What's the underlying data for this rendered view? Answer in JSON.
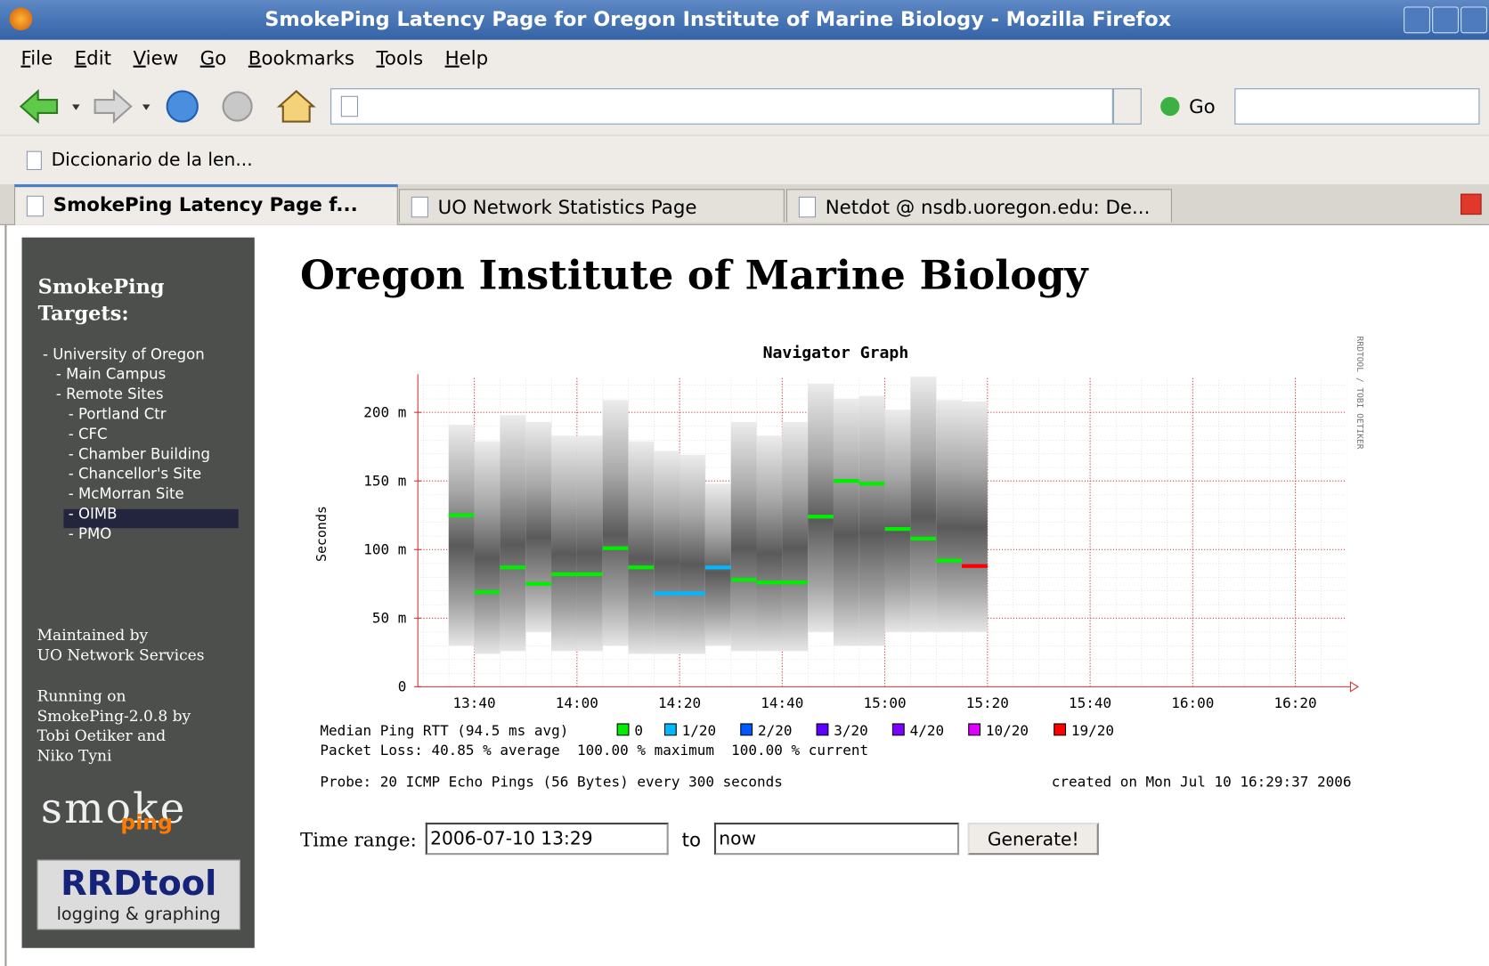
{
  "window": {
    "title": "SmokePing Latency Page for Oregon Institute of Marine Biology - Mozilla Firefox"
  },
  "menu": [
    "File",
    "Edit",
    "View",
    "Go",
    "Bookmarks",
    "Tools",
    "Help"
  ],
  "toolbar": {
    "go": "Go"
  },
  "bookmarks": [
    "Diccionario de la len..."
  ],
  "tabs": [
    "SmokePing Latency Page f...",
    "UO Network Statistics Page",
    "Netdot @ nsdb.uoregon.edu: De..."
  ],
  "sidebar": {
    "heading": "SmokePing Targets:",
    "targets": [
      "- University of Oregon",
      "- Main Campus",
      "- Remote Sites",
      "- Portland Ctr",
      "- CFC",
      "- Chamber Building",
      "- Chancellor's Site",
      "- McMorran Site",
      "- OIMB",
      "- PMO"
    ],
    "maintained": [
      "Maintained by",
      "UO Network Services"
    ],
    "running": [
      "Running on",
      "SmokePing-2.0.8 by",
      "Tobi Oetiker and",
      "Niko Tyni"
    ],
    "logo_smoke": "smoke",
    "logo_ping": "ping",
    "logo_rrd": "RRDtool",
    "logo_rrd_sub": "logging & graphing"
  },
  "heading": "Oregon Institute of Marine Biology",
  "chart_data": {
    "type": "smoke",
    "title": "Navigator Graph",
    "y_label": "Seconds",
    "side_text": "RRDTOOL / TOBI OETIKER",
    "x": [
      "13:35",
      "13:40",
      "13:45",
      "13:50",
      "13:55",
      "14:00",
      "14:05",
      "14:10",
      "14:15",
      "14:20",
      "14:25",
      "14:30",
      "14:35",
      "14:40",
      "14:45",
      "14:50",
      "14:55",
      "15:00",
      "15:05",
      "15:10",
      "15:15"
    ],
    "median": {
      "name": "Median Ping RTT (94.5 ms avg)",
      "values": [
        0.125,
        0.069,
        0.087,
        0.075,
        0.082,
        0.082,
        0.101,
        0.087,
        0.068,
        0.068,
        0.087,
        0.078,
        0.076,
        0.076,
        0.124,
        0.15,
        0.148,
        0.115,
        0.108,
        0.092,
        0.088
      ]
    },
    "high": [
      0.191,
      0.179,
      0.198,
      0.193,
      0.183,
      0.183,
      0.209,
      0.179,
      0.172,
      0.169,
      0.148,
      0.193,
      0.183,
      0.193,
      0.221,
      0.21,
      0.212,
      0.202,
      0.226,
      0.209,
      0.208
    ],
    "low": [
      0.03,
      0.024,
      0.026,
      0.04,
      0.026,
      0.026,
      0.03,
      0.024,
      0.024,
      0.024,
      0.03,
      0.026,
      0.026,
      0.026,
      0.04,
      0.03,
      0.03,
      0.04,
      0.04,
      0.04,
      0.04
    ],
    "loss_class": [
      0,
      0,
      0,
      0,
      0,
      0,
      0,
      0,
      1,
      1,
      1,
      0,
      0,
      0,
      0,
      0,
      0,
      0,
      0,
      0,
      6
    ],
    "loss_legend": [
      {
        "name": "0",
        "color": "#00ee00"
      },
      {
        "name": "1/20",
        "color": "#00b8ff"
      },
      {
        "name": "2/20",
        "color": "#0059ff"
      },
      {
        "name": "3/20",
        "color": "#5e00ff"
      },
      {
        "name": "4/20",
        "color": "#7e00ff"
      },
      {
        "name": "10/20",
        "color": "#dd00ff"
      },
      {
        "name": "19/20",
        "color": "#ff0000"
      }
    ],
    "packet_loss": "Packet Loss: 40.85 % average  100.00 % maximum  100.00 % current",
    "probe": "Probe: 20 ICMP Echo Pings (56 Bytes) every 300 seconds",
    "created": "created on Mon Jul 10 16:29:37 2006",
    "xlim": [
      "13:29",
      "16:30"
    ],
    "xticks": [
      "13:40",
      "14:00",
      "14:20",
      "14:40",
      "15:00",
      "15:20",
      "15:40",
      "16:00",
      "16:20"
    ],
    "ylim": [
      0,
      0.225
    ],
    "yticks": [
      0,
      {
        "value": 0.05,
        "label": "50 m"
      },
      {
        "value": 0.1,
        "label": "100 m"
      },
      {
        "value": 0.15,
        "label": "150 m"
      },
      {
        "value": 0.2,
        "label": "200 m"
      }
    ],
    "grid": true
  },
  "form": {
    "label": "Time range:",
    "start": "2006-07-10 13:29",
    "to": "to",
    "end": "now",
    "button": "Generate!"
  }
}
